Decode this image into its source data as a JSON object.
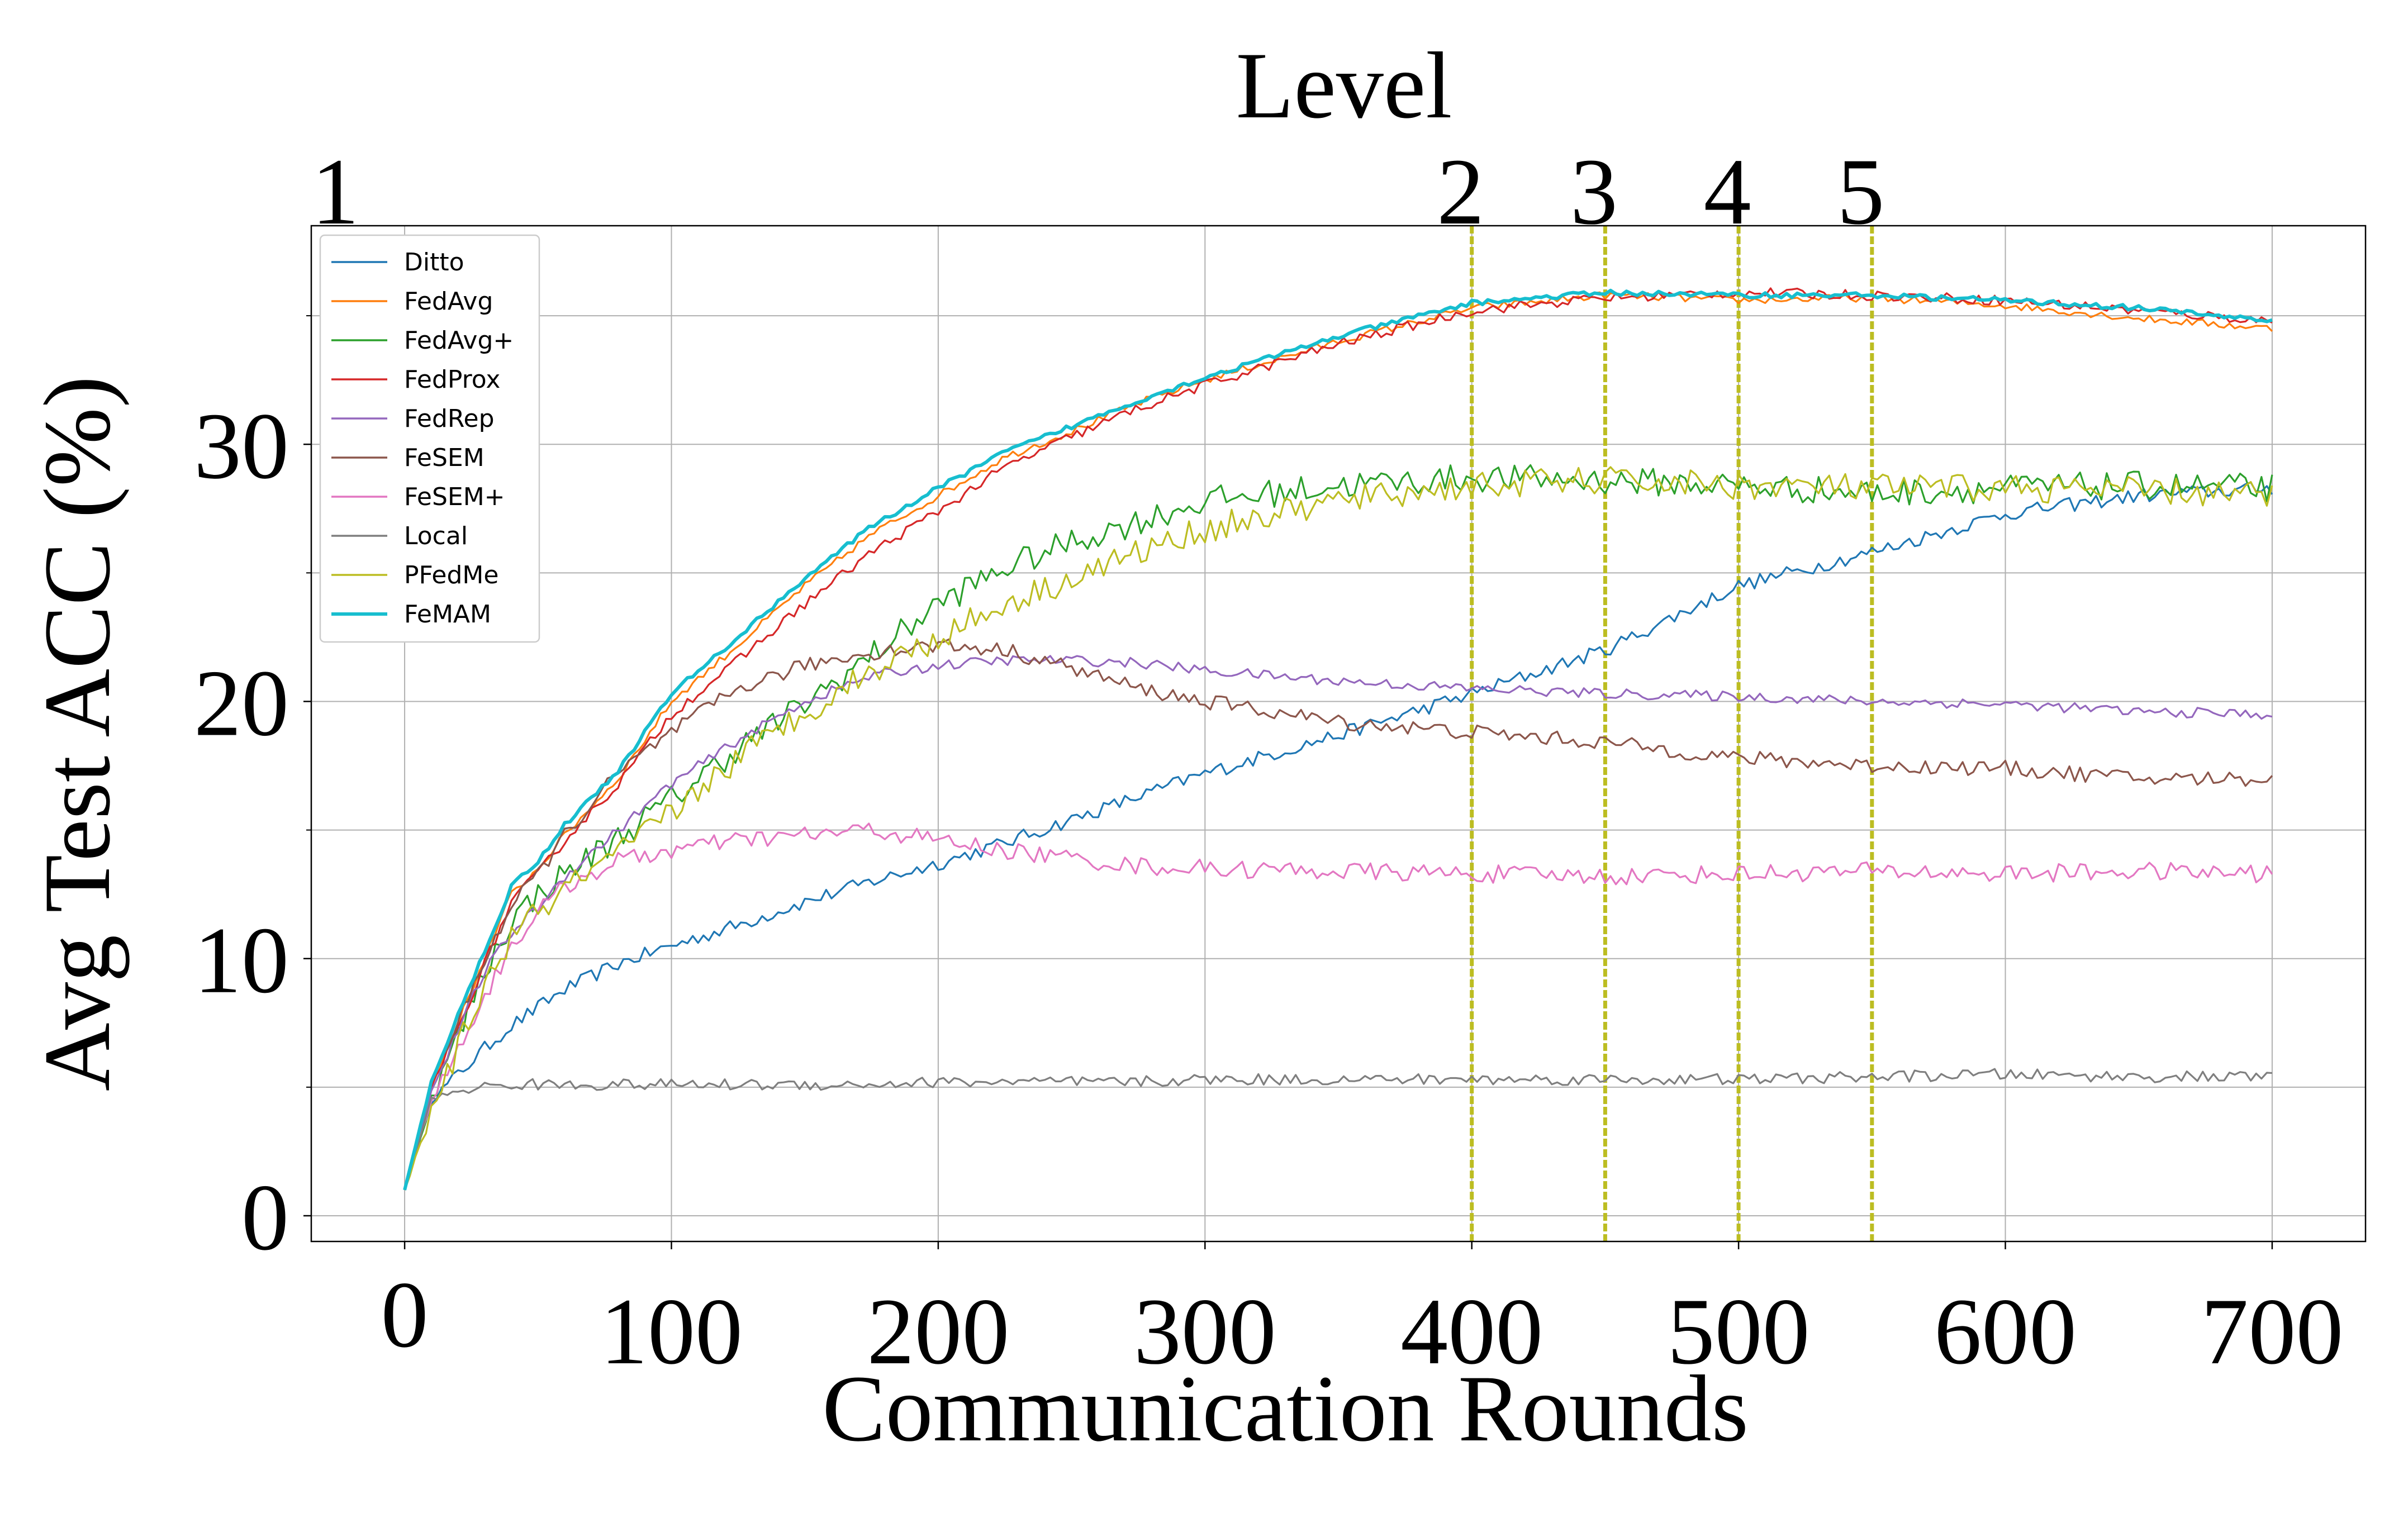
{
  "chart_data": {
    "type": "line",
    "title": "",
    "xlabel": "Communication Rounds",
    "ylabel": "Avg Test ACC (%)",
    "top_axis_label": "Level",
    "xlim": [
      -35,
      735
    ],
    "ylim": [
      -1,
      38.5
    ],
    "x_ticks": [
      0,
      100,
      200,
      300,
      400,
      500,
      600,
      700
    ],
    "x_tick_labels": [
      "0",
      "100",
      "200",
      "300",
      "400",
      "500",
      "600",
      "700"
    ],
    "y_ticks": [
      0,
      10,
      20,
      30
    ],
    "y_tick_labels": [
      "0",
      "10",
      "20",
      "30"
    ],
    "y_minor_ticks": [
      5,
      15,
      25,
      35
    ],
    "grid": true,
    "legend_position": "upper-left",
    "level_markers": [
      {
        "label": "1",
        "x": 0,
        "line": false
      },
      {
        "label": "2",
        "x": 400,
        "line": true
      },
      {
        "label": "3",
        "x": 450,
        "line": true
      },
      {
        "label": "4",
        "x": 500,
        "line": true
      },
      {
        "label": "5",
        "x": 550,
        "line": true
      }
    ],
    "level_line_color": "#bcbd22",
    "x": [
      0,
      10,
      20,
      30,
      40,
      50,
      60,
      80,
      100,
      125,
      150,
      175,
      200,
      225,
      250,
      275,
      300,
      350,
      400,
      450,
      500,
      550,
      600,
      650,
      700
    ],
    "series": [
      {
        "name": "Ditto",
        "color": "#1f77b4",
        "noise": 0.28,
        "values": [
          1.0,
          4.5,
          5.5,
          6.5,
          7.4,
          8.1,
          8.8,
          9.8,
          10.5,
          11.3,
          12.2,
          13.0,
          13.7,
          14.5,
          15.4,
          16.3,
          17.2,
          18.7,
          20.3,
          22.0,
          24.5,
          25.8,
          27.3,
          28.0,
          28.3
        ]
      },
      {
        "name": "FedAvg",
        "color": "#ff7f0e",
        "noise": 0.15,
        "values": [
          1.0,
          5.0,
          7.5,
          10.0,
          12.5,
          13.5,
          14.8,
          17.0,
          20.0,
          22.2,
          24.5,
          26.5,
          28.0,
          29.5,
          30.5,
          31.6,
          32.5,
          34.0,
          35.3,
          35.8,
          35.6,
          35.7,
          35.4,
          34.9,
          34.5
        ]
      },
      {
        "name": "FedAvg+",
        "color": "#2ca02c",
        "noise": 0.55,
        "values": [
          1.0,
          4.5,
          7.0,
          9.5,
          11.5,
          12.5,
          13.3,
          14.7,
          16.2,
          18.2,
          19.9,
          21.8,
          23.8,
          25.2,
          26.2,
          27.0,
          27.8,
          28.4,
          28.7,
          28.6,
          28.4,
          28.1,
          28.3,
          28.4,
          28.3
        ]
      },
      {
        "name": "FedProx",
        "color": "#d62728",
        "noise": 0.2,
        "values": [
          1.0,
          5.0,
          7.3,
          9.8,
          12.2,
          13.3,
          14.6,
          16.8,
          19.5,
          21.6,
          23.8,
          25.8,
          27.4,
          29.1,
          30.3,
          31.4,
          32.3,
          33.9,
          35.2,
          35.7,
          35.9,
          35.8,
          35.6,
          35.2,
          34.8
        ]
      },
      {
        "name": "FedRep",
        "color": "#9467bd",
        "noise": 0.2,
        "values": [
          1.0,
          4.8,
          7.2,
          9.5,
          11.0,
          12.0,
          13.2,
          15.0,
          16.8,
          18.5,
          20.0,
          21.0,
          21.4,
          21.6,
          21.6,
          21.5,
          21.2,
          20.8,
          20.5,
          20.3,
          20.2,
          20.0,
          19.9,
          19.6,
          19.5
        ]
      },
      {
        "name": "FeSEM",
        "color": "#8c564b",
        "noise": 0.3,
        "values": [
          1.0,
          5.2,
          7.5,
          10.0,
          12.0,
          13.3,
          14.8,
          17.2,
          18.8,
          20.5,
          21.4,
          21.9,
          22.2,
          22.0,
          21.3,
          20.5,
          20.0,
          19.2,
          18.8,
          18.4,
          17.8,
          17.5,
          17.4,
          17.0,
          17.0
        ]
      },
      {
        "name": "FeSEM+",
        "color": "#e377c2",
        "noise": 0.35,
        "values": [
          1.0,
          4.5,
          6.5,
          8.5,
          10.5,
          11.8,
          12.8,
          13.8,
          14.2,
          14.6,
          14.8,
          15.0,
          14.6,
          14.2,
          13.9,
          13.6,
          13.5,
          13.4,
          13.3,
          13.2,
          13.3,
          13.4,
          13.3,
          13.4,
          13.3
        ]
      },
      {
        "name": "Local",
        "color": "#7f7f7f",
        "noise": 0.22,
        "values": [
          1.0,
          4.5,
          4.9,
          5.0,
          5.1,
          5.1,
          5.1,
          5.1,
          5.1,
          5.1,
          5.1,
          5.1,
          5.2,
          5.2,
          5.2,
          5.2,
          5.3,
          5.3,
          5.3,
          5.3,
          5.3,
          5.4,
          5.5,
          5.4,
          5.4
        ]
      },
      {
        "name": "PFedMe",
        "color": "#bcbd22",
        "noise": 0.55,
        "values": [
          1.0,
          4.0,
          6.5,
          9.0,
          10.8,
          11.8,
          12.7,
          14.0,
          15.7,
          17.8,
          19.6,
          21.2,
          22.5,
          23.8,
          24.8,
          25.8,
          26.7,
          27.8,
          28.4,
          28.6,
          28.4,
          28.3,
          28.3,
          28.2,
          28.0
        ]
      },
      {
        "name": "FeMAM",
        "color": "#17becf",
        "noise": 0.1,
        "values": [
          1.0,
          5.2,
          7.8,
          10.3,
          12.8,
          13.8,
          15.2,
          17.3,
          20.3,
          22.5,
          24.8,
          26.8,
          28.3,
          29.7,
          30.7,
          31.7,
          32.6,
          34.2,
          35.5,
          35.9,
          35.8,
          35.8,
          35.6,
          35.3,
          34.8
        ]
      }
    ]
  }
}
